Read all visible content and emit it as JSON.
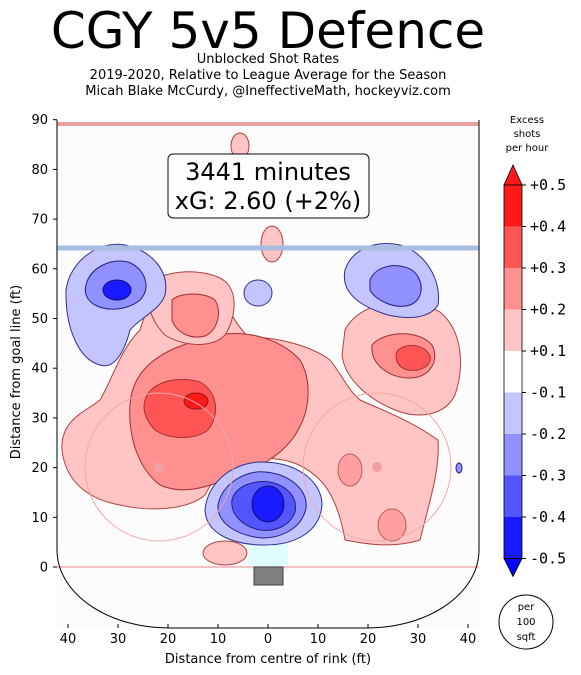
{
  "header": {
    "title": "CGY 5v5 Defence",
    "subtitle_1": "Unblocked Shot Rates",
    "subtitle_2": "2019-2020, Relative to League Average for the Season",
    "subtitle_3": "Micah Blake McCurdy, @IneffectiveMath, hockeyviz.com"
  },
  "summary": {
    "minutes": "3441 minutes",
    "xg": "xG: 2.60 (+2%)"
  },
  "colorbar": {
    "title_1": "Excess",
    "title_2": "shots",
    "title_3": "per hour",
    "labels": [
      "+0.5",
      "+0.4",
      "+0.3",
      "+0.2",
      "+0.1",
      "-0.1",
      "-0.2",
      "-0.3",
      "-0.4",
      "-0.5"
    ],
    "colors": [
      "#ff1a1a",
      "#ff5555",
      "#ff9090",
      "#ffc4c4",
      "#ffffff",
      "#c4c4ff",
      "#9090ff",
      "#5555ff",
      "#1a1aff"
    ]
  },
  "unit_badge": {
    "line1": "per",
    "line2": "100",
    "line3": "sqft"
  },
  "chart_data": {
    "type": "heatmap",
    "xlabel": "Distance from centre of rink (ft)",
    "ylabel": "Distance from goal line (ft)",
    "xlim": [
      42.5,
      -42.5
    ],
    "ylim": [
      -11,
      90
    ],
    "xticks": [
      40,
      30,
      20,
      10,
      0,
      10,
      20,
      30,
      40
    ],
    "yticks": [
      0,
      10,
      20,
      30,
      40,
      50,
      60,
      70,
      80,
      90
    ],
    "grid": false,
    "legend": "colorbar right",
    "regions": [
      {
        "x": 14,
        "y": 33,
        "value": 0.45
      },
      {
        "x": 18,
        "y": 30,
        "value": 0.3
      },
      {
        "x": 5,
        "y": 36,
        "value": 0.2
      },
      {
        "x": -28,
        "y": 42,
        "value": 0.35
      },
      {
        "x": 15,
        "y": 51,
        "value": 0.2
      },
      {
        "x": -22,
        "y": 20,
        "value": 0.15
      },
      {
        "x": 33,
        "y": 22,
        "value": 0.15
      },
      {
        "x": 0,
        "y": 13,
        "value": -0.5
      },
      {
        "x": 0,
        "y": 16,
        "value": -0.3
      },
      {
        "x": 30,
        "y": 56,
        "value": -0.45
      },
      {
        "x": -27,
        "y": 56,
        "value": -0.35
      },
      {
        "x": 2,
        "y": 55,
        "value": -0.15
      },
      {
        "x": 6,
        "y": 82,
        "value": 0.15
      },
      {
        "x": -1,
        "y": 64,
        "value": 0.15
      }
    ]
  }
}
